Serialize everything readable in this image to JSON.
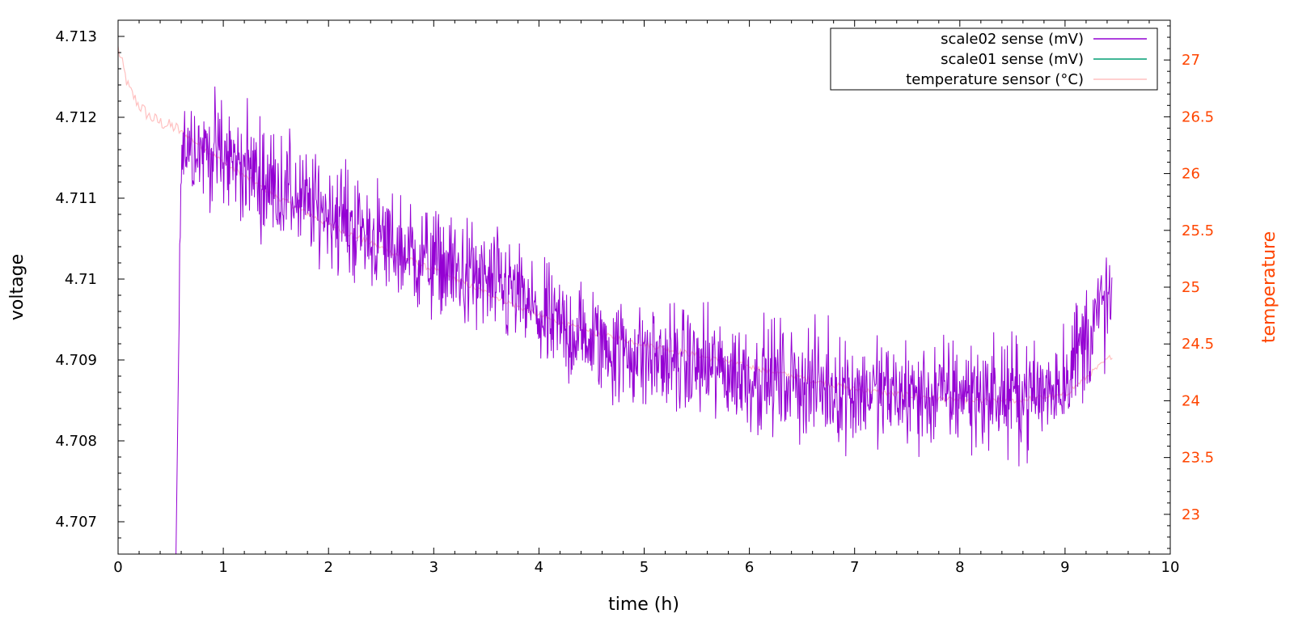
{
  "chart_data": {
    "type": "line",
    "xlabel": "time (h)",
    "ylabel": "voltage",
    "y2label": "temperature",
    "xlim": [
      0,
      10
    ],
    "ylim": [
      4.7066,
      4.7132
    ],
    "y2lim": [
      22.65,
      27.35
    ],
    "x_ticks": [
      0,
      1,
      2,
      3,
      4,
      5,
      6,
      7,
      8,
      9,
      10
    ],
    "y_ticks": [
      4.707,
      4.708,
      4.709,
      4.71,
      4.711,
      4.712,
      4.713
    ],
    "y_tick_labels": [
      "4.707",
      "4.708",
      "4.709",
      "4.71",
      "4.711",
      "4.712",
      "4.713"
    ],
    "y2_ticks": [
      23,
      23.5,
      24,
      24.5,
      25,
      25.5,
      26,
      26.5,
      27
    ],
    "y2_tick_labels": [
      "23",
      "23.5",
      "24",
      "24.5",
      "25",
      "25.5",
      "26",
      "26.5",
      "27"
    ],
    "grid": false,
    "legend_position": "top-right",
    "colors": {
      "scale02": "#9400d3",
      "scale01": "#009e73",
      "temperature": "#ffc0c0",
      "axis2": "#ff4500"
    },
    "series": [
      {
        "name": "scale02 sense (mV)",
        "axis": "left",
        "color": "#9400d3",
        "x": [
          0.55,
          0.6,
          0.7,
          0.8,
          0.9,
          1.0,
          1.2,
          1.4,
          1.6,
          1.8,
          2.0,
          2.3,
          2.6,
          3.0,
          3.4,
          3.8,
          4.0,
          4.4,
          4.8,
          5.2,
          5.6,
          6.0,
          6.4,
          6.8,
          7.2,
          7.6,
          8.0,
          8.4,
          8.8,
          9.0,
          9.2,
          9.45
        ],
        "y": [
          4.7066,
          4.7117,
          4.7117,
          4.7116,
          4.7116,
          4.7115,
          4.7114,
          4.7112,
          4.7111,
          4.7109,
          4.71085,
          4.7106,
          4.7104,
          4.7102,
          4.71,
          4.7098,
          4.7095,
          4.7093,
          4.7091,
          4.709,
          4.7089,
          4.7088,
          4.70875,
          4.70865,
          4.7086,
          4.70855,
          4.7086,
          4.70855,
          4.7086,
          4.7088,
          4.7093,
          4.7098
        ],
        "amplitude": [
          0,
          0.0009,
          0.0009,
          0.0009,
          0.0009,
          0.0009,
          0.0009,
          0.0009,
          0.0009,
          0.0009,
          0.0009,
          0.0009,
          0.0009,
          0.0009,
          0.0009,
          0.0009,
          0.0009,
          0.0009,
          0.0009,
          0.0009,
          0.0009,
          0.0009,
          0.0009,
          0.0009,
          0.0009,
          0.0009,
          0.0009,
          0.0009,
          0.0009,
          0.0009,
          0.001,
          0.001
        ]
      },
      {
        "name": "scale01 sense (mV)",
        "axis": "left",
        "color": "#009e73",
        "x": [],
        "y": []
      },
      {
        "name": "temperature sensor (°C)",
        "axis": "right",
        "color": "#ffc0c0",
        "x": [
          0.0,
          0.1,
          0.2,
          0.3,
          0.4,
          0.55,
          1.0,
          1.5,
          2.0,
          2.5,
          3.0,
          3.5,
          4.0,
          4.5,
          5.0,
          5.5,
          6.0,
          6.5,
          7.0,
          7.5,
          8.0,
          8.5,
          9.0,
          9.45
        ],
        "y": [
          27.1,
          26.75,
          26.6,
          26.5,
          26.45,
          26.4,
          26.1,
          25.8,
          25.55,
          25.35,
          25.15,
          24.95,
          24.75,
          24.6,
          24.5,
          24.4,
          24.3,
          24.2,
          24.1,
          24.05,
          24.0,
          24.0,
          24.05,
          24.4
        ]
      }
    ]
  }
}
